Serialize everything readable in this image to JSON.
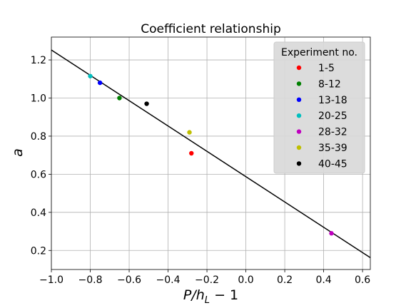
{
  "chart_data": {
    "type": "scatter",
    "title": "Coefficient relationship",
    "xlabel": "P/h",
    "xlabel_subscript": "L",
    "xlabel_suffix": " − 1",
    "ylabel": "a",
    "xlim": [
      -1.0,
      0.64
    ],
    "ylim": [
      0.1,
      1.32
    ],
    "xticks": [
      -1.0,
      -0.8,
      -0.6,
      -0.4,
      -0.2,
      0.0,
      0.2,
      0.4,
      0.6
    ],
    "xtick_labels": [
      "−1.0",
      "−0.8",
      "−0.6",
      "−0.4",
      "−0.2",
      "0.0",
      "0.2",
      "0.4",
      "0.6"
    ],
    "yticks": [
      0.2,
      0.4,
      0.6,
      0.8,
      1.0,
      1.2
    ],
    "ytick_labels": [
      "0.2",
      "0.4",
      "0.6",
      "0.8",
      "1.0",
      "1.2"
    ],
    "grid": true,
    "legend": {
      "title": "Experiment no.",
      "position": "top-right"
    },
    "series": [
      {
        "name": "1-5",
        "color": "#ff0000",
        "x": [
          -0.28
        ],
        "y": [
          0.71
        ]
      },
      {
        "name": "8-12",
        "color": "#008000",
        "x": [
          -0.65
        ],
        "y": [
          1.0
        ]
      },
      {
        "name": "13-18",
        "color": "#0000ff",
        "x": [
          -0.75
        ],
        "y": [
          1.08
        ]
      },
      {
        "name": "20-25",
        "color": "#00bfbf",
        "x": [
          -0.8
        ],
        "y": [
          1.115
        ]
      },
      {
        "name": "28-32",
        "color": "#bf00bf",
        "x": [
          0.44
        ],
        "y": [
          0.29
        ]
      },
      {
        "name": "35-39",
        "color": "#bfbf00",
        "x": [
          -0.29
        ],
        "y": [
          0.82
        ]
      },
      {
        "name": "40-45",
        "color": "#000000",
        "x": [
          -0.51
        ],
        "y": [
          0.97
        ]
      }
    ],
    "fit_line": {
      "x": [
        -1.0,
        0.64
      ],
      "y": [
        1.252,
        0.162
      ],
      "color": "#000000"
    }
  }
}
